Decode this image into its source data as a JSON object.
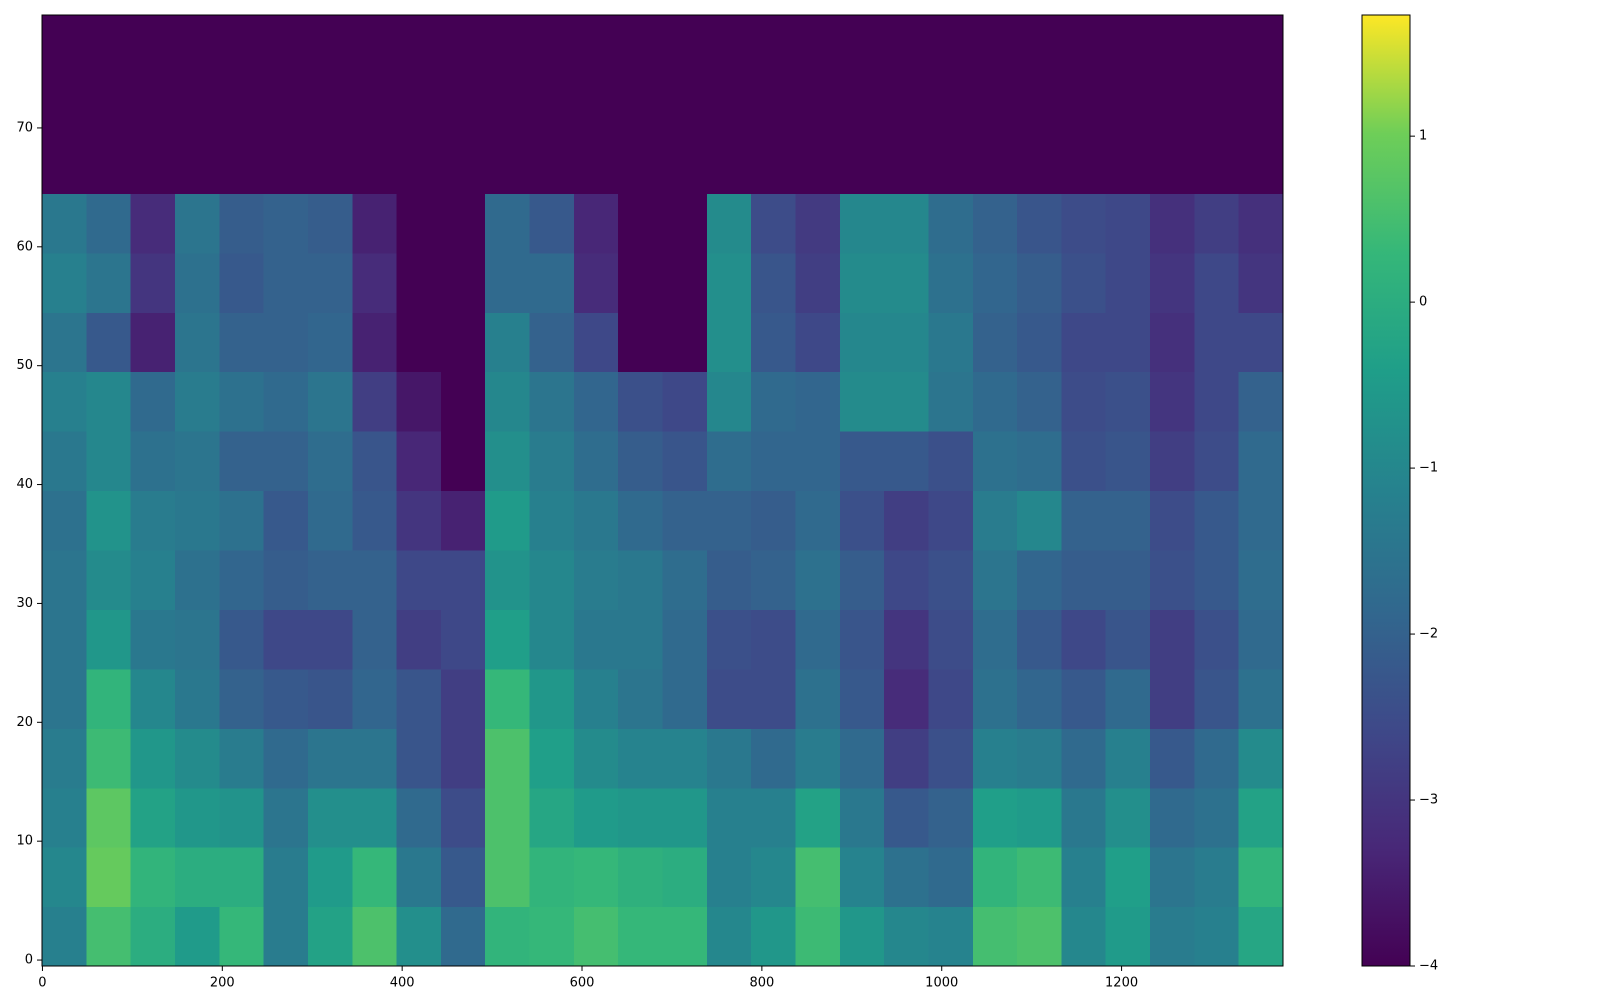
{
  "chart_data": {
    "type": "heatmap",
    "colormap": "viridis",
    "xlim": [
      -0.5,
      1379.5
    ],
    "ylim": [
      -0.5,
      79.5
    ],
    "clim": [
      -4,
      1.73
    ],
    "xticks": [
      0,
      200,
      400,
      600,
      800,
      1000,
      1200
    ],
    "yticks": [
      0,
      10,
      20,
      30,
      40,
      50,
      60,
      70
    ],
    "cticks": [
      {
        "value": -4,
        "label": "−4"
      },
      {
        "value": -3,
        "label": "−3"
      },
      {
        "value": -2,
        "label": "−2"
      },
      {
        "value": -1,
        "label": "−1"
      },
      0,
      1
    ],
    "z": [
      [
        -1.2,
        0.5,
        0,
        -0.5,
        0.3,
        -1.3,
        -0.3,
        0.6,
        -0.8,
        -1.8,
        0.2,
        0.3,
        0.5,
        0.3,
        0.3,
        -1,
        -0.6,
        0.4,
        -0.6,
        -1,
        -1.1,
        0.5,
        0.6,
        -1,
        -0.5,
        -1.3,
        -1.2,
        -0.2
      ],
      [
        -1,
        0.9,
        0.2,
        0,
        0,
        -1.3,
        -0.5,
        0.3,
        -1.4,
        -2.2,
        0.6,
        0.2,
        0.3,
        0.1,
        0,
        -1.2,
        -1,
        0.5,
        -1.1,
        -1.6,
        -1.8,
        0.2,
        0.4,
        -1.2,
        -0.4,
        -1.5,
        -1.3,
        0.2
      ],
      [
        -1.2,
        0.8,
        -0.3,
        -0.6,
        -0.7,
        -1.5,
        -0.8,
        -0.8,
        -1.8,
        -2.5,
        0.6,
        -0.2,
        -0.5,
        -0.6,
        -0.6,
        -1.2,
        -1.2,
        -0.3,
        -1.4,
        -2.2,
        -2.0,
        -0.4,
        -0.5,
        -1.4,
        -0.8,
        -1.8,
        -1.6,
        -0.3
      ],
      [
        -1.3,
        0.4,
        -0.6,
        -0.9,
        -1.3,
        -1.8,
        -1.5,
        -1.5,
        -2.3,
        -2.8,
        0.6,
        -0.4,
        -0.9,
        -1.1,
        -1.1,
        -1.4,
        -1.8,
        -1.3,
        -1.8,
        -2.8,
        -2.4,
        -1.2,
        -1.3,
        -1.8,
        -1.2,
        -2.2,
        -1.8,
        -0.9
      ],
      [
        -1.5,
        0.2,
        -1,
        -1.4,
        -2,
        -2.2,
        -2.3,
        -1.9,
        -2.3,
        -2.8,
        0.3,
        -0.6,
        -1.2,
        -1.5,
        -1.8,
        -2.5,
        -2.5,
        -1.6,
        -2.2,
        -3.2,
        -2.6,
        -1.6,
        -1.9,
        -2.2,
        -1.8,
        -2.8,
        -2.3,
        -1.6
      ],
      [
        -1.5,
        -0.6,
        -1.4,
        -1.5,
        -2.2,
        -2.6,
        -2.6,
        -2.0,
        -2.8,
        -2.6,
        -0.4,
        -1.0,
        -1.4,
        -1.4,
        -1.8,
        -2.4,
        -2.5,
        -1.8,
        -2.3,
        -3.0,
        -2.5,
        -1.7,
        -2.2,
        -2.6,
        -2.3,
        -2.8,
        -2.4,
        -1.8
      ],
      [
        -1.5,
        -0.9,
        -1.2,
        -1.6,
        -1.9,
        -2.1,
        -2.0,
        -2.0,
        -2.6,
        -2.6,
        -0.7,
        -1.0,
        -1.3,
        -1.4,
        -1.7,
        -2.1,
        -2.0,
        -1.6,
        -2.1,
        -2.6,
        -2.4,
        -1.5,
        -1.9,
        -2.1,
        -2.1,
        -2.4,
        -2.2,
        -1.7
      ],
      [
        -1.6,
        -0.7,
        -1.3,
        -1.4,
        -1.6,
        -2.2,
        -1.8,
        -2.2,
        -3.0,
        -3.4,
        -0.5,
        -1.2,
        -1.4,
        -1.8,
        -2.0,
        -2.0,
        -2.1,
        -1.8,
        -2.4,
        -2.8,
        -2.6,
        -1.3,
        -1.0,
        -2.0,
        -2.0,
        -2.5,
        -2.2,
        -1.8
      ],
      [
        -1.4,
        -1.0,
        -1.6,
        -1.5,
        -2.0,
        -2.0,
        -1.7,
        -2.3,
        -3.3,
        -4.0,
        -0.8,
        -1.3,
        -1.7,
        -2.1,
        -2.3,
        -1.7,
        -1.9,
        -1.9,
        -2.2,
        -2.2,
        -2.4,
        -1.6,
        -1.7,
        -2.4,
        -2.3,
        -2.8,
        -2.5,
        -1.8
      ],
      [
        -1.2,
        -1.0,
        -1.8,
        -1.3,
        -1.6,
        -1.8,
        -1.5,
        -2.8,
        -3.6,
        -4.0,
        -1.0,
        -1.5,
        -1.9,
        -2.4,
        -2.6,
        -1.0,
        -1.8,
        -1.9,
        -0.9,
        -0.9,
        -1.5,
        -1.8,
        -2.0,
        -2.5,
        -2.4,
        -3.0,
        -2.6,
        -2.0
      ],
      [
        -1.5,
        -2.2,
        -3.4,
        -1.5,
        -2.0,
        -2.0,
        -1.9,
        -3.4,
        -4.0,
        -4.0,
        -1.2,
        -2.0,
        -2.6,
        -4.0,
        -4.0,
        -0.8,
        -2.2,
        -2.6,
        -1.0,
        -1.0,
        -1.4,
        -2.0,
        -2.2,
        -2.6,
        -2.6,
        -3.1,
        -2.6,
        -2.6
      ],
      [
        -1.2,
        -1.5,
        -3.0,
        -1.6,
        -2.2,
        -2.0,
        -2.0,
        -3.2,
        -4.0,
        -4.0,
        -1.8,
        -1.8,
        -3.2,
        -4.0,
        -4.0,
        -0.8,
        -2.3,
        -2.8,
        -0.9,
        -0.9,
        -1.6,
        -1.9,
        -2.1,
        -2.4,
        -2.6,
        -3.0,
        -2.6,
        -3.0
      ],
      [
        -1.4,
        -1.8,
        -3.2,
        -1.5,
        -2.1,
        -2.0,
        -2.1,
        -3.4,
        -4.0,
        -4.0,
        -1.8,
        -2.2,
        -3.3,
        -4.0,
        -4.0,
        -0.9,
        -2.5,
        -2.9,
        -1.0,
        -1.0,
        -1.7,
        -2.0,
        -2.3,
        -2.5,
        -2.6,
        -3.1,
        -2.8,
        -3.1
      ],
      [
        -4,
        -4,
        -4,
        -4,
        -4,
        -4,
        -4,
        -4,
        -4,
        -4,
        -4,
        -4,
        -4,
        -4,
        -4,
        -4,
        -4,
        -4,
        -4,
        -4,
        -4,
        -4,
        -4,
        -4,
        -4,
        -4,
        -4,
        -4
      ],
      [
        -4,
        -4,
        -4,
        -4,
        -4,
        -4,
        -4,
        -4,
        -4,
        -4,
        -4,
        -4,
        -4,
        -4,
        -4,
        -4,
        -4,
        -4,
        -4,
        -4,
        -4,
        -4,
        -4,
        -4,
        -4,
        -4,
        -4,
        -4
      ],
      [
        -4,
        -4,
        -4,
        -4,
        -4,
        -4,
        -4,
        -4,
        -4,
        -4,
        -4,
        -4,
        -4,
        -4,
        -4,
        -4,
        -4,
        -4,
        -4,
        -4,
        -4,
        -4,
        -4,
        -4,
        -4,
        -4,
        -4,
        -4
      ]
    ]
  }
}
